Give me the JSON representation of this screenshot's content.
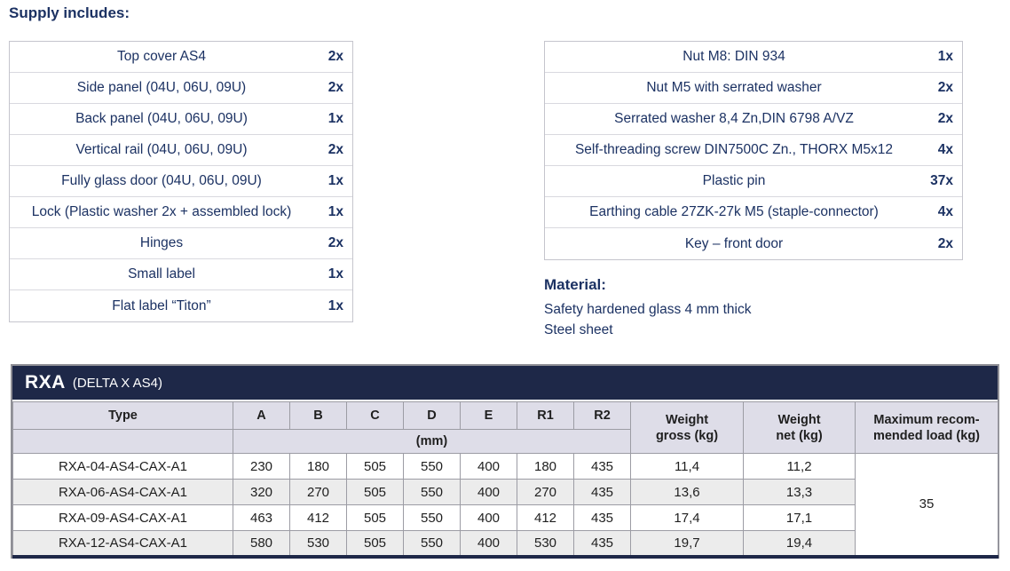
{
  "page": {
    "supply_heading": "Supply includes:",
    "material": {
      "heading": "Material:",
      "lines": [
        "Safety hardened glass 4 mm thick",
        "Steel sheet"
      ]
    }
  },
  "supply_left": [
    {
      "item": "Top cover AS4",
      "qty": "2x"
    },
    {
      "item": "Side panel (04U, 06U, 09U)",
      "qty": "2x"
    },
    {
      "item": "Back panel (04U, 06U, 09U)",
      "qty": "1x"
    },
    {
      "item": "Vertical rail (04U, 06U, 09U)",
      "qty": "2x"
    },
    {
      "item": "Fully glass door (04U, 06U, 09U)",
      "qty": "1x"
    },
    {
      "item": "Lock (Plastic washer 2x + assembled lock)",
      "qty": "1x"
    },
    {
      "item": "Hinges",
      "qty": "2x"
    },
    {
      "item": "Small label",
      "qty": "1x"
    },
    {
      "item": "Flat label “Titon”",
      "qty": "1x"
    }
  ],
  "supply_right": [
    {
      "item": "Nut M8: DIN 934",
      "qty": "1x"
    },
    {
      "item": "Nut M5 with serrated washer",
      "qty": "2x"
    },
    {
      "item": "Serrated washer 8,4 Zn,DIN 6798 A/VZ",
      "qty": "2x"
    },
    {
      "item": "Self-threading screw DIN7500C Zn., THORX M5x12",
      "qty": "4x"
    },
    {
      "item": "Plastic pin",
      "qty": "37x"
    },
    {
      "item": "Earthing cable 27ZK-27k M5 (staple-connector)",
      "qty": "4x"
    },
    {
      "item": "Key – front door",
      "qty": "2x"
    }
  ],
  "spec_table": {
    "title": "RXA",
    "title_suffix": "(DELTA X AS4)",
    "col_type": "Type",
    "dim_columns": [
      "A",
      "B",
      "C",
      "D",
      "E",
      "R1",
      "R2"
    ],
    "unit_row_label": "(mm)",
    "weight_gross_header": [
      "Weight",
      "gross (kg)"
    ],
    "weight_net_header": [
      "Weight",
      "net (kg)"
    ],
    "max_load_header": [
      "Maximum recom-",
      "mended load (kg)"
    ],
    "rows": [
      {
        "type": "RXA-04-AS4-CAX-A1",
        "dims": [
          "230",
          "180",
          "505",
          "550",
          "400",
          "180",
          "435"
        ],
        "weight_gross": "11,4",
        "weight_net": "11,2"
      },
      {
        "type": "RXA-06-AS4-CAX-A1",
        "dims": [
          "320",
          "270",
          "505",
          "550",
          "400",
          "270",
          "435"
        ],
        "weight_gross": "13,6",
        "weight_net": "13,3"
      },
      {
        "type": "RXA-09-AS4-CAX-A1",
        "dims": [
          "463",
          "412",
          "505",
          "550",
          "400",
          "412",
          "435"
        ],
        "weight_gross": "17,4",
        "weight_net": "17,1"
      },
      {
        "type": "RXA-12-AS4-CAX-A1",
        "dims": [
          "580",
          "530",
          "505",
          "550",
          "400",
          "530",
          "435"
        ],
        "weight_gross": "19,7",
        "weight_net": "19,4"
      }
    ],
    "max_load_value": "35"
  },
  "colors": {
    "navy_text": "#1c3263",
    "title_bar_bg": "#1e2848",
    "header_bg": "#dedde8",
    "stripe_bg": "#ececec"
  }
}
